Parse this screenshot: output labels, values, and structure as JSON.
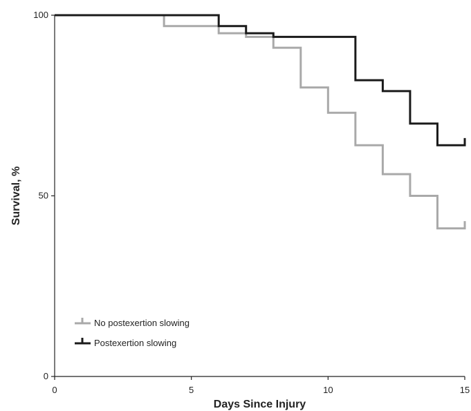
{
  "chart_data": {
    "type": "line",
    "step": true,
    "xlabel": "Days Since Injury",
    "ylabel": "Survival, %",
    "xlim": [
      0,
      15
    ],
    "ylim": [
      0,
      100
    ],
    "xticks": [
      0,
      5,
      10,
      15
    ],
    "yticks": [
      0,
      50,
      100
    ],
    "grid": false,
    "legend_position": "bottom-left",
    "series": [
      {
        "name": "No postexertion slowing",
        "color": "#a9a9a9",
        "x": [
          0,
          4,
          6,
          7,
          8,
          9,
          10,
          11,
          12,
          13,
          14,
          15
        ],
        "y": [
          100,
          97,
          95,
          94,
          91,
          80,
          73,
          64,
          56,
          50,
          41,
          43
        ]
      },
      {
        "name": "Postexertion slowing",
        "color": "#1a1a1a",
        "x": [
          0,
          6,
          7,
          8,
          11,
          12,
          13,
          14,
          15
        ],
        "y": [
          100,
          97,
          95,
          94,
          82,
          79,
          70,
          64,
          66
        ]
      }
    ]
  }
}
